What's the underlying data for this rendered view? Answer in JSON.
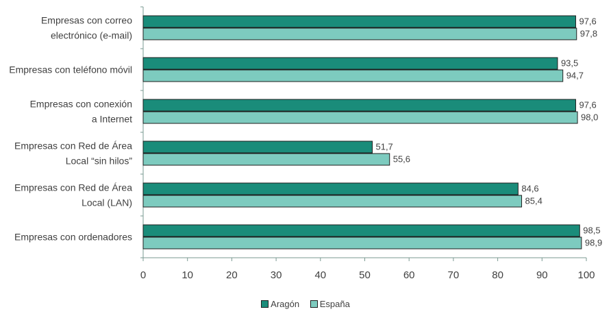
{
  "chart_data": {
    "type": "bar",
    "orientation": "horizontal",
    "categories": [
      [
        "Empresas con correo",
        "electrónico (e-mail)"
      ],
      [
        "Empresas con teléfono móvil"
      ],
      [
        "Empresas con conexión",
        "a Internet"
      ],
      [
        "Empresas con Red de Área",
        "Local “sin hilos”"
      ],
      [
        "Empresas con Red de Área",
        "Local (LAN)"
      ],
      [
        "Empresas con ordenadores"
      ]
    ],
    "series": [
      {
        "name": "Aragón",
        "color": "#1a8c7a",
        "values": [
          97.6,
          93.5,
          97.6,
          51.7,
          84.6,
          98.5
        ],
        "labels": [
          "97,6",
          "93,5",
          "97,6",
          "51,7",
          "84,6",
          "98,5"
        ]
      },
      {
        "name": "España",
        "color": "#7dcbbf",
        "values": [
          97.8,
          94.7,
          98.0,
          55.6,
          85.4,
          98.9
        ],
        "labels": [
          "97,8",
          "94,7",
          "98,0",
          "55,6",
          "85,4",
          "98,9"
        ]
      }
    ],
    "xlim": [
      0,
      100
    ],
    "xticks": [
      0,
      10,
      20,
      30,
      40,
      50,
      60,
      70,
      80,
      90,
      100
    ],
    "grid": false,
    "legend_position": "bottom-center"
  }
}
